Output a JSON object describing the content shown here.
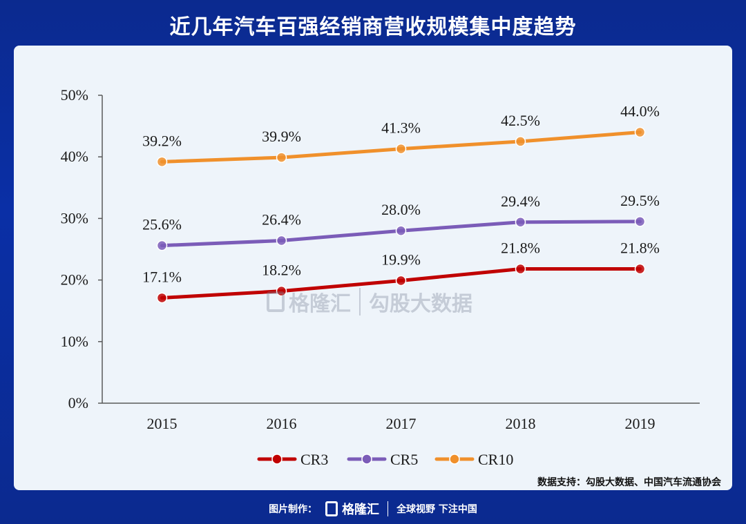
{
  "title": "近几年汽车百强经销商营收规模集中度趋势",
  "source": "数据支持：勾股大数据、中国汽车流通协会",
  "watermark": {
    "brand": "格隆汇",
    "text": "勾股大数据"
  },
  "footer": {
    "made_by": "图片制作：",
    "brand": "格隆汇",
    "slogan": "全球视野 下注中国"
  },
  "chart_data": {
    "type": "line",
    "categories": [
      "2015",
      "2016",
      "2017",
      "2018",
      "2019"
    ],
    "y_ticks": [
      "0%",
      "10%",
      "20%",
      "30%",
      "40%",
      "50%"
    ],
    "ylim": [
      0,
      50
    ],
    "grid": false,
    "legend_position": "bottom",
    "series": [
      {
        "name": "CR3",
        "color": "#c00000",
        "values": [
          17.1,
          18.2,
          19.9,
          21.8,
          21.8
        ],
        "labels": [
          "17.1%",
          "18.2%",
          "19.9%",
          "21.8%",
          "21.8%"
        ]
      },
      {
        "name": "CR5",
        "color": "#7b5cb8",
        "values": [
          25.6,
          26.4,
          28.0,
          29.4,
          29.5
        ],
        "labels": [
          "25.6%",
          "26.4%",
          "28.0%",
          "29.4%",
          "29.5%"
        ]
      },
      {
        "name": "CR10",
        "color": "#f0902b",
        "values": [
          39.2,
          39.9,
          41.3,
          42.5,
          44.0
        ],
        "labels": [
          "39.2%",
          "39.9%",
          "41.3%",
          "42.5%",
          "44.0%"
        ]
      }
    ]
  }
}
